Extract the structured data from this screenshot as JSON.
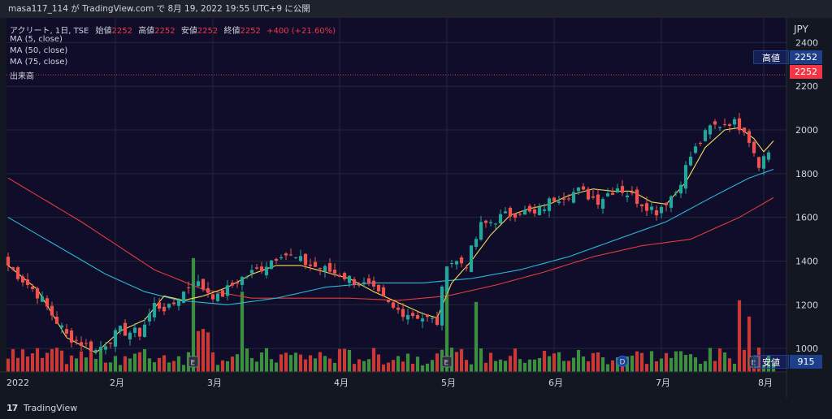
{
  "header": {
    "publish_note": "masa117_114 が TradingView.com で 8月 19, 2022 19:55 UTC+9 に公開"
  },
  "legend": {
    "symbol": "アクリート, 1日, TSE",
    "open_label": "始値",
    "open_value": "2252",
    "high_label": "高値",
    "high_value": "2252",
    "low_label": "安値",
    "low_value": "2252",
    "close_label": "終値",
    "close_value": "2252",
    "change": "+400 (+21.60%)",
    "ma5": "MA (5, close)",
    "ma50": "MA (50, close)",
    "ma75": "MA (75, close)",
    "volume": "出来高"
  },
  "price_axis": {
    "currency": "JPY",
    "high_tag_label": "高値",
    "high_tag_value": "2252",
    "last_price_tag": "2252",
    "low_tag_label": "安値",
    "low_tag_value": "915"
  },
  "footer": {
    "brand": "TradingView"
  },
  "colors": {
    "background": "#131722",
    "up": "#26a69a",
    "down": "#ef5350",
    "vol_up": "#3c8f3f",
    "vol_down": "#c93a36",
    "ma5": "#f5dd55",
    "ma50": "#2cb6d6",
    "ma75": "#e23c3c",
    "grid": "#232838"
  },
  "chart_data": {
    "type": "candlestick",
    "title": "アクリート, 1日, TSE",
    "ylabel": "JPY",
    "ylim": [
      915,
      2420
    ],
    "y_ticks": [
      1000,
      1200,
      1400,
      1600,
      1800,
      2000,
      2200,
      2400
    ],
    "x_ticks": [
      "2022",
      "2月",
      "3月",
      "4月",
      "5月",
      "6月",
      "7月",
      "8月"
    ],
    "earnings_markers": [
      "E",
      "E",
      "E"
    ],
    "dividend_marker": "D",
    "last_price": 2252,
    "close_anchors": [
      [
        0,
        1380
      ],
      [
        6,
        1250
      ],
      [
        12,
        1060
      ],
      [
        18,
        990
      ],
      [
        23,
        1080
      ],
      [
        27,
        1070
      ],
      [
        30,
        1200
      ],
      [
        33,
        1180
      ],
      [
        38,
        1310
      ],
      [
        43,
        1230
      ],
      [
        47,
        1310
      ],
      [
        52,
        1370
      ],
      [
        56,
        1440
      ],
      [
        62,
        1380
      ],
      [
        68,
        1340
      ],
      [
        74,
        1280
      ],
      [
        79,
        1180
      ],
      [
        84,
        1150
      ],
      [
        88,
        1120
      ],
      [
        90,
        1400
      ],
      [
        94,
        1390
      ],
      [
        97,
        1560
      ],
      [
        101,
        1600
      ],
      [
        105,
        1630
      ],
      [
        108,
        1610
      ],
      [
        112,
        1690
      ],
      [
        117,
        1720
      ],
      [
        121,
        1680
      ],
      [
        125,
        1740
      ],
      [
        129,
        1680
      ],
      [
        133,
        1630
      ],
      [
        137,
        1720
      ],
      [
        140,
        1880
      ],
      [
        144,
        2010
      ],
      [
        148,
        2040
      ],
      [
        151,
        2010
      ],
      [
        154,
        1850
      ],
      [
        156,
        1900
      ]
    ],
    "ma5_anchors": [
      [
        0,
        1380
      ],
      [
        6,
        1270
      ],
      [
        12,
        1050
      ],
      [
        18,
        980
      ],
      [
        23,
        1080
      ],
      [
        28,
        1130
      ],
      [
        32,
        1240
      ],
      [
        36,
        1220
      ],
      [
        40,
        1240
      ],
      [
        45,
        1280
      ],
      [
        50,
        1340
      ],
      [
        55,
        1380
      ],
      [
        60,
        1380
      ],
      [
        65,
        1350
      ],
      [
        70,
        1320
      ],
      [
        75,
        1260
      ],
      [
        80,
        1210
      ],
      [
        85,
        1160
      ],
      [
        88,
        1140
      ],
      [
        91,
        1300
      ],
      [
        95,
        1400
      ],
      [
        99,
        1520
      ],
      [
        103,
        1610
      ],
      [
        107,
        1640
      ],
      [
        111,
        1660
      ],
      [
        115,
        1700
      ],
      [
        120,
        1730
      ],
      [
        124,
        1720
      ],
      [
        128,
        1720
      ],
      [
        132,
        1670
      ],
      [
        135,
        1660
      ],
      [
        139,
        1760
      ],
      [
        143,
        1920
      ],
      [
        147,
        2000
      ],
      [
        150,
        2010
      ],
      [
        153,
        1960
      ],
      [
        155,
        1900
      ],
      [
        157,
        1950
      ]
    ],
    "ma50_anchors": [
      [
        0,
        1600
      ],
      [
        10,
        1470
      ],
      [
        20,
        1340
      ],
      [
        28,
        1260
      ],
      [
        35,
        1220
      ],
      [
        45,
        1200
      ],
      [
        55,
        1230
      ],
      [
        65,
        1280
      ],
      [
        75,
        1300
      ],
      [
        85,
        1300
      ],
      [
        95,
        1320
      ],
      [
        105,
        1360
      ],
      [
        115,
        1420
      ],
      [
        125,
        1500
      ],
      [
        135,
        1580
      ],
      [
        145,
        1700
      ],
      [
        152,
        1780
      ],
      [
        157,
        1820
      ]
    ],
    "ma75_anchors": [
      [
        0,
        1780
      ],
      [
        15,
        1580
      ],
      [
        30,
        1360
      ],
      [
        40,
        1270
      ],
      [
        50,
        1230
      ],
      [
        60,
        1230
      ],
      [
        70,
        1230
      ],
      [
        80,
        1220
      ],
      [
        90,
        1240
      ],
      [
        100,
        1290
      ],
      [
        110,
        1350
      ],
      [
        120,
        1420
      ],
      [
        130,
        1470
      ],
      [
        140,
        1500
      ],
      [
        150,
        1600
      ],
      [
        157,
        1690
      ]
    ]
  }
}
